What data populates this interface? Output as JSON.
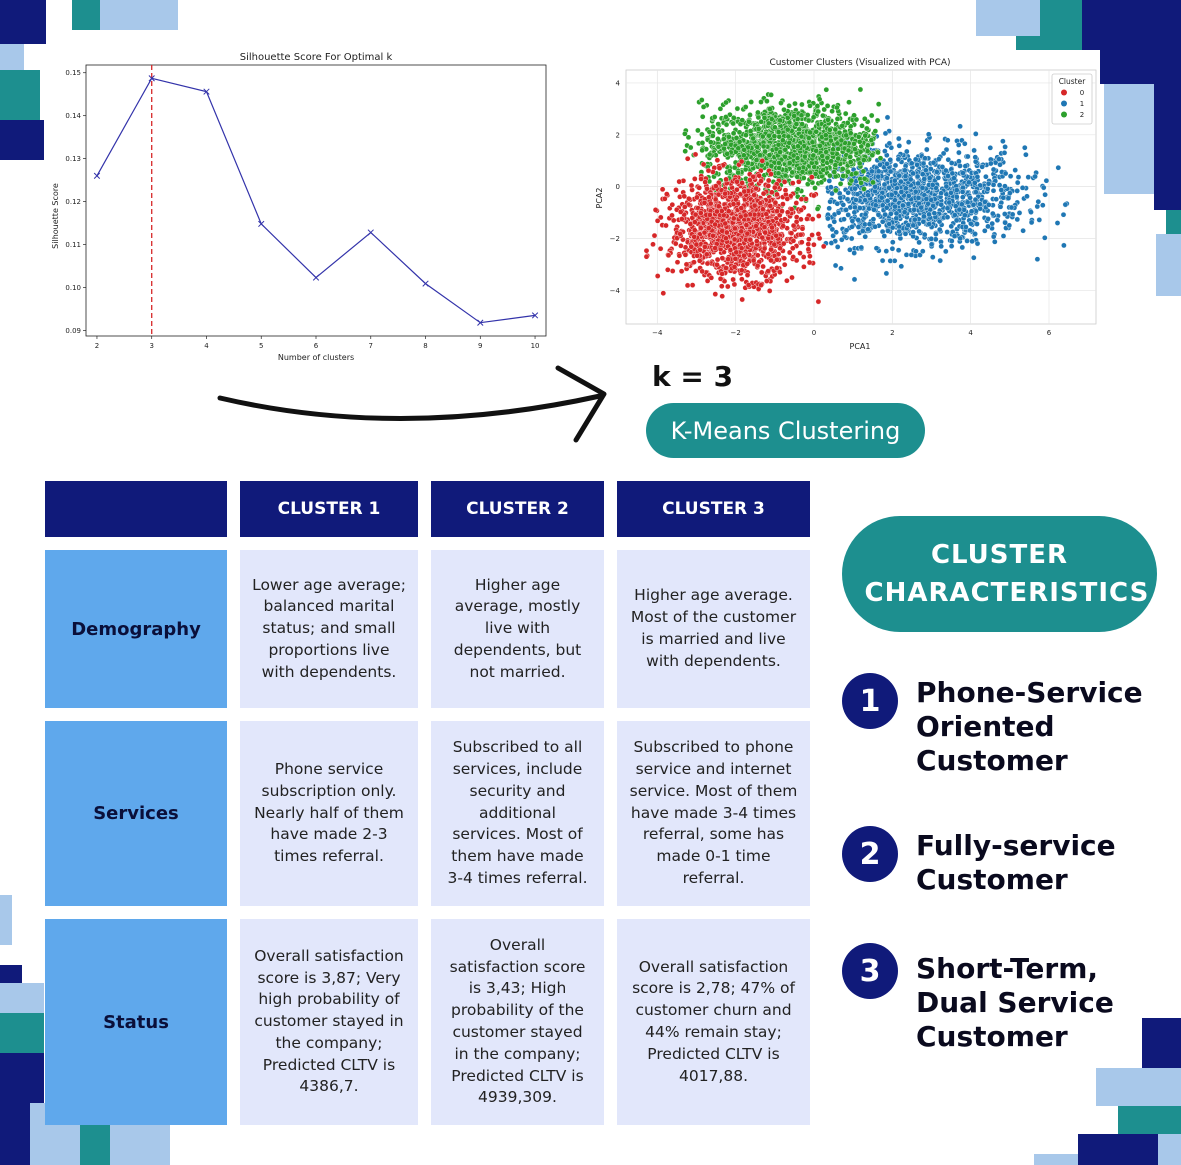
{
  "silhouette_chart": {
    "title": "Silhouette Score For Optimal k",
    "xlabel": "Number of clusters",
    "ylabel": "Silhouette Score"
  },
  "pca_chart": {
    "title": "Customer Clusters (Visualized with PCA)",
    "xlabel": "PCA1",
    "ylabel": "PCA2",
    "legend_title": "Cluster"
  },
  "k_label": "k = 3",
  "method_label": "K-Means Clustering",
  "table": {
    "columns": [
      "CLUSTER 1",
      "CLUSTER 2",
      "CLUSTER 3"
    ],
    "rows": [
      {
        "label": "Demography",
        "cells": [
          "Lower age average; balanced marital status; and small proportions live with dependents.",
          "Higher age average, mostly live with dependents, but not married.",
          "Higher age average. Most of the customer is married and live with dependents."
        ]
      },
      {
        "label": "Services",
        "cells": [
          "Phone service subscription only. Nearly half of them have made 2-3 times referral.",
          "Subscribed to all services, include security and additional services. Most of them have made 3-4 times referral.",
          "Subscribed to phone service and internet service. Most of them have made 3-4 times referral, some has made 0-1 time referral."
        ]
      },
      {
        "label": "Status",
        "cells": [
          "Overall satisfaction score is 3,87; Very high probability of customer stayed in the company; Predicted CLTV is 4386,7.",
          "Overall satisfaction score is 3,43; High probability of the customer stayed in the company; Predicted CLTV is 4939,309.",
          "Overall satisfaction score is 2,78; 47% of customer churn and 44% remain stay; Predicted CLTV is 4017,88."
        ]
      }
    ]
  },
  "characteristics": {
    "heading": "CLUSTER CHARACTERISTICS",
    "items": [
      {
        "number": "1",
        "title": "Phone-Service Oriented Customer"
      },
      {
        "number": "2",
        "title": "Fully-service Customer"
      },
      {
        "number": "3",
        "title": "Short-Term, Dual Service Customer"
      }
    ]
  },
  "colors": {
    "navy": "#101a7a",
    "teal": "#1d8f8f",
    "light_blue": "#5fa8ec",
    "pale_blue": "#e2e7fb",
    "cluster0": "#d62728",
    "cluster1": "#1f77b4",
    "cluster2": "#2ca02c"
  },
  "chart_data": [
    {
      "type": "line",
      "title": "Silhouette Score For Optimal k",
      "xlabel": "Number of clusters",
      "ylabel": "Silhouette Score",
      "x": [
        2,
        3,
        4,
        5,
        6,
        7,
        8,
        9,
        10
      ],
      "y": [
        0.126,
        0.1487,
        0.1456,
        0.1148,
        0.1023,
        0.1128,
        0.1009,
        0.0918,
        0.0935
      ],
      "xticks": [
        "2",
        "3",
        "4",
        "5",
        "6",
        "7",
        "8",
        "9",
        "10"
      ],
      "yticks": [
        "0.09",
        "0.10",
        "0.11",
        "0.12",
        "0.13",
        "0.14",
        "0.15"
      ],
      "xlim": [
        1.8,
        10.2
      ],
      "ylim": [
        0.0887,
        0.1518
      ],
      "marker": "x",
      "vline_x": 3,
      "line_color": "#3333aa",
      "vline_color": "#d62728",
      "grid": false
    },
    {
      "type": "scatter",
      "title": "Customer Clusters (Visualized with PCA)",
      "xlabel": "PCA1",
      "ylabel": "PCA2",
      "xticks": [
        "−4",
        "−2",
        "0",
        "2",
        "4",
        "6"
      ],
      "yticks": [
        "−4",
        "−2",
        "0",
        "2",
        "4"
      ],
      "xlim": [
        -4.8,
        7.2
      ],
      "ylim": [
        -5.3,
        4.5
      ],
      "grid": true,
      "legend_title": "Cluster",
      "legend_position": "top-right",
      "series": [
        {
          "name": "0",
          "color": "#d62728",
          "center": [
            -2.0,
            -1.6
          ],
          "spread": [
            1.1,
            1.25
          ],
          "approx_range_x": [
            -4.3,
            0.3
          ],
          "approx_range_y": [
            -4.9,
            1.4
          ]
        },
        {
          "name": "1",
          "color": "#1f77b4",
          "center": [
            2.5,
            -0.4
          ],
          "spread": [
            1.9,
            1.25
          ],
          "approx_range_x": [
            0.3,
            6.5
          ],
          "approx_range_y": [
            -3.7,
            3.5
          ]
        },
        {
          "name": "2",
          "color": "#2ca02c",
          "center": [
            -0.6,
            1.6
          ],
          "spread": [
            1.5,
            1.05
          ],
          "approx_range_x": [
            -3.3,
            1.7
          ],
          "approx_range_y": [
            -1.3,
            4.2
          ]
        }
      ]
    }
  ]
}
